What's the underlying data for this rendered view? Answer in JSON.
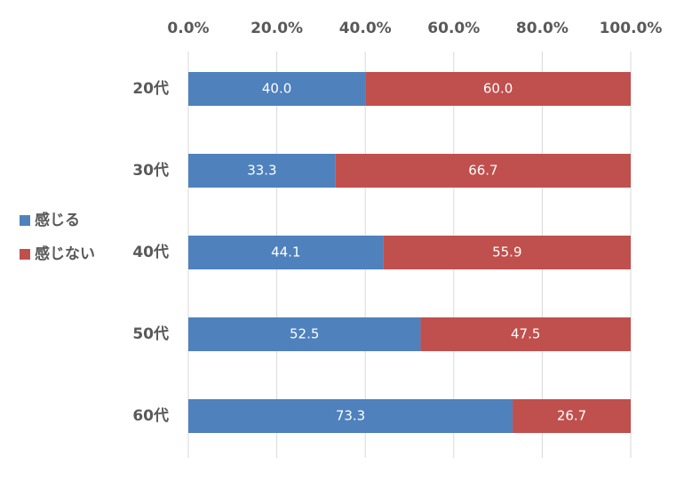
{
  "chart_data": {
    "type": "bar",
    "orientation": "horizontal",
    "stacked": "percent",
    "title": "",
    "xlabel": "",
    "ylabel": "",
    "categories": [
      "20代",
      "30代",
      "40代",
      "50代",
      "60代"
    ],
    "series": [
      {
        "name": "感じる",
        "color": "#4f81bd",
        "values": [
          40.0,
          33.3,
          44.1,
          52.5,
          73.3
        ]
      },
      {
        "name": "感じない",
        "color": "#c0504d",
        "values": [
          60.0,
          66.7,
          55.9,
          47.5,
          26.7
        ]
      }
    ],
    "xlim": [
      0,
      100
    ],
    "x_ticks": [
      0,
      20,
      40,
      60,
      80,
      100
    ],
    "x_tick_labels": [
      "0.0%",
      "20.0%",
      "40.0%",
      "60.0%",
      "80.0%",
      "100.0%"
    ],
    "x_axis_position": "top",
    "data_labels": true,
    "grid": true,
    "legend_position": "left"
  }
}
